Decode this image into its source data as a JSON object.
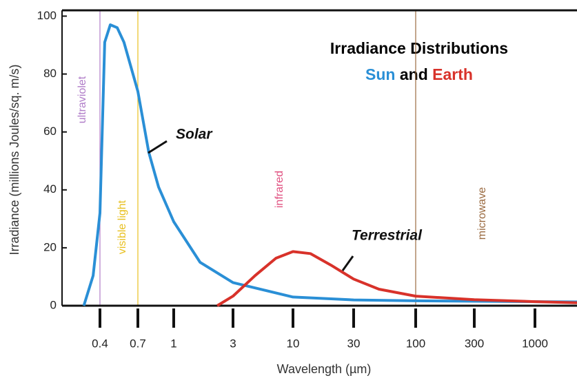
{
  "chart_data": {
    "type": "line",
    "title": "Irradiance Distributions",
    "subtitle_parts": [
      {
        "text": "Sun",
        "color": "#2a8fd6"
      },
      {
        "text": "and",
        "color": "#000000"
      },
      {
        "text": "Earth",
        "color": "#d8322a"
      }
    ],
    "xlabel": "Wavelength (µm)",
    "ylabel": "Irradiance (millions Joules/sq. m/s)",
    "xscale": "log",
    "xlim": [
      0.23,
      2100
    ],
    "xticks": [
      0.4,
      0.7,
      1,
      3,
      10,
      30,
      100,
      300,
      1000
    ],
    "ylim": [
      0,
      102
    ],
    "yticks": [
      0,
      20,
      40,
      60,
      80,
      100
    ],
    "series": [
      {
        "name": "Solar",
        "color": "#2a8fd6",
        "x": [
          0.316,
          0.362,
          0.4,
          0.429,
          0.466,
          0.516,
          0.57,
          0.7,
          0.78,
          0.86,
          1,
          1.63,
          3,
          10,
          30,
          100,
          1000,
          2100
        ],
        "values": [
          0,
          10.4,
          32,
          91,
          97,
          96,
          91,
          74,
          53,
          41,
          29,
          15,
          8,
          3,
          2,
          1.7,
          1.4,
          1.3
        ]
      },
      {
        "name": "Terrestrial",
        "color": "#d8322a",
        "x": [
          2.24,
          3,
          4.67,
          7.1,
          10,
          13.7,
          19.9,
          30,
          49,
          100,
          300,
          1000,
          2100
        ],
        "values": [
          0,
          3.3,
          10.4,
          16.4,
          18.7,
          18,
          14,
          9.2,
          5.7,
          3.3,
          2.1,
          1.4,
          1
        ]
      }
    ],
    "regions": [
      {
        "label": "ultraviolet",
        "color": "#b07cc8",
        "line_x": 0.4
      },
      {
        "label": "visible light",
        "color": "#e8c020",
        "line_x": 0.7
      },
      {
        "label": "infrared",
        "color": "#e05080"
      },
      {
        "label": "microwave",
        "color": "#9a6a40",
        "line_x": 100
      }
    ]
  }
}
